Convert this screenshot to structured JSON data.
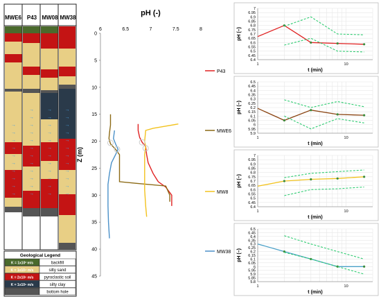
{
  "columns": {
    "headers": [
      "MWE6",
      "P43",
      "MW08",
      "MW38"
    ],
    "kvalue_arrow": "→"
  },
  "legend": {
    "title": "Geological Legend",
    "rows": [
      {
        "k": "K = 1x10² m/s",
        "name": "backfill",
        "color": "#4a6a2c"
      },
      {
        "k": "K = 1x10⁴ m/s",
        "name": "silty sand",
        "color": "#e8cf85"
      },
      {
        "k": "K = 2x10⁵ m/s",
        "name": "pyroclastic soil",
        "color": "#c41414"
      },
      {
        "k": "K = 1x10⁶ m/s",
        "name": "silty clay",
        "color": "#2a3a4a"
      },
      {
        "k": "",
        "name": "bottom hole",
        "color": "#555555"
      }
    ]
  },
  "chart_data": [
    {
      "type": "line",
      "title": "pH (-)",
      "ylabel": "Z (m)",
      "xlim": [
        6,
        8
      ],
      "ylim": [
        0,
        45
      ],
      "y_reversed": true,
      "xticks": [
        "6",
        "6.5",
        "7",
        "7.5",
        "8"
      ],
      "yticks": [
        "0",
        "5",
        "10",
        "15",
        "20",
        "25",
        "30",
        "35",
        "40",
        "45"
      ],
      "series": [
        {
          "name": "P43",
          "color": "#e02020",
          "points": [
            [
              6.75,
              16.8
            ],
            [
              6.75,
              18
            ],
            [
              6.78,
              19.3
            ],
            [
              6.83,
              20.2
            ],
            [
              6.9,
              21
            ],
            [
              6.92,
              22.5
            ],
            [
              6.95,
              24
            ],
            [
              7.05,
              26
            ],
            [
              7.15,
              27.5
            ],
            [
              7.3,
              28.5
            ],
            [
              7.42,
              30
            ],
            [
              7.42,
              32
            ]
          ]
        },
        {
          "name": "MWE6",
          "color": "#8b6914",
          "points": [
            [
              6.2,
              15
            ],
            [
              6.2,
              17
            ],
            [
              6.18,
              18.5
            ],
            [
              6.17,
              19.5
            ],
            [
              6.2,
              20.5
            ],
            [
              6.3,
              21.5
            ],
            [
              6.38,
              22.5
            ],
            [
              6.38,
              25
            ],
            [
              6.38,
              27.5
            ],
            [
              6.7,
              27.8
            ],
            [
              7.3,
              28.3
            ],
            [
              7.38,
              30
            ],
            [
              7.38,
              31.2
            ]
          ]
        },
        {
          "name": "MW8",
          "color": "#f2c21d",
          "points": [
            [
              7.55,
              16.8
            ],
            [
              7.3,
              17.2
            ],
            [
              7.05,
              17.6
            ],
            [
              6.9,
              18
            ],
            [
              6.88,
              20
            ],
            [
              6.9,
              21
            ],
            [
              6.88,
              22.5
            ],
            [
              6.88,
              25
            ],
            [
              6.88,
              29
            ],
            [
              6.9,
              32
            ],
            [
              6.92,
              34
            ]
          ]
        },
        {
          "name": "MW38",
          "color": "#4a90c8",
          "points": [
            [
              6.28,
              18
            ],
            [
              6.26,
              19.5
            ],
            [
              6.3,
              20.5
            ],
            [
              6.35,
              21.5
            ],
            [
              6.3,
              22.5
            ],
            [
              6.22,
              24
            ],
            [
              6.18,
              26
            ],
            [
              6.15,
              28
            ],
            [
              6.15,
              32
            ],
            [
              6.16,
              35
            ],
            [
              6.18,
              38
            ]
          ]
        }
      ]
    },
    {
      "type": "line",
      "title": "",
      "xlabel": "t (min)",
      "ylabel": "pH (–)",
      "x_scale": "log",
      "xlim": [
        1,
        20
      ],
      "ylim": [
        6.4,
        7
      ],
      "xticks": [
        "1",
        "10"
      ],
      "yticks": [
        "6.4",
        "6.45",
        "6.5",
        "6.55",
        "6.6",
        "6.65",
        "6.7",
        "6.75",
        "6.8",
        "6.85",
        "6.9",
        "6.95",
        "7"
      ],
      "series": [
        {
          "color": "#e02020",
          "points": [
            [
              1,
              6.67
            ],
            [
              2,
              6.8
            ],
            [
              4,
              6.6
            ],
            [
              8,
              6.59
            ],
            [
              16,
              6.58
            ]
          ]
        },
        {
          "color": "#2ecc71",
          "dashed": true,
          "points": [
            [
              2,
              6.79
            ],
            [
              4,
              6.9
            ],
            [
              8,
              6.7
            ],
            [
              16,
              6.69
            ]
          ]
        },
        {
          "color": "#2ecc71",
          "dashed": true,
          "points": [
            [
              2,
              6.57
            ],
            [
              4,
              6.65
            ],
            [
              8,
              6.5
            ],
            [
              16,
              6.49
            ]
          ]
        }
      ]
    },
    {
      "type": "line",
      "title": "",
      "xlabel": "t (min)",
      "ylabel": "pH (–)",
      "x_scale": "log",
      "xlim": [
        1,
        20
      ],
      "ylim": [
        5.9,
        6.5
      ],
      "xticks": [
        "1",
        "10"
      ],
      "yticks": [
        "5.9",
        "5.95",
        "6",
        "6.05",
        "6.1",
        "6.15",
        "6.2",
        "6.25",
        "6.3",
        "6.35",
        "6.4",
        "6.45",
        "6.5"
      ],
      "series": [
        {
          "color": "#8b4513",
          "points": [
            [
              1,
              6.19
            ],
            [
              2,
              6.05
            ],
            [
              4,
              6.17
            ],
            [
              8,
              6.12
            ],
            [
              16,
              6.11
            ]
          ]
        },
        {
          "color": "#2ecc71",
          "dashed": true,
          "points": [
            [
              2,
              6.29
            ],
            [
              4,
              6.2
            ],
            [
              8,
              6.27
            ],
            [
              16,
              6.21
            ]
          ]
        },
        {
          "color": "#2ecc71",
          "dashed": true,
          "points": [
            [
              2,
              6.1
            ],
            [
              4,
              5.95
            ],
            [
              8,
              6.07
            ],
            [
              16,
              6.02
            ]
          ]
        }
      ]
    },
    {
      "type": "line",
      "title": "",
      "xlabel": "t (min)",
      "ylabel": "pH (–)",
      "x_scale": "log",
      "xlim": [
        1,
        20
      ],
      "ylim": [
        6.4,
        7
      ],
      "xticks": [
        "1",
        "10"
      ],
      "yticks": [
        "6.4",
        "6.45",
        "6.5",
        "6.55",
        "6.6",
        "6.65",
        "6.7",
        "6.75",
        "6.8",
        "6.85",
        "6.9",
        "6.95",
        "7"
      ],
      "series": [
        {
          "color": "#f2c21d",
          "points": [
            [
              1,
              6.64
            ],
            [
              2,
              6.7
            ],
            [
              4,
              6.72
            ],
            [
              8,
              6.73
            ],
            [
              16,
              6.75
            ]
          ]
        },
        {
          "color": "#2ecc71",
          "dashed": true,
          "points": [
            [
              2,
              6.74
            ],
            [
              4,
              6.79
            ],
            [
              8,
              6.81
            ],
            [
              16,
              6.83
            ]
          ]
        },
        {
          "color": "#2ecc71",
          "dashed": true,
          "points": [
            [
              2,
              6.53
            ],
            [
              4,
              6.6
            ],
            [
              8,
              6.61
            ],
            [
              16,
              6.63
            ]
          ]
        }
      ]
    },
    {
      "type": "line",
      "title": "",
      "xlabel": "t (min)",
      "ylabel": "pH (–)",
      "x_scale": "log",
      "xlim": [
        1,
        20
      ],
      "ylim": [
        5.8,
        6.5
      ],
      "xticks": [
        "1",
        "10"
      ],
      "yticks": [
        "5.8",
        "5.85",
        "5.9",
        "5.95",
        "6",
        "6.05",
        "6.1",
        "6.15",
        "6.2",
        "6.25",
        "6.3",
        "6.35",
        "6.4",
        "6.45",
        "6.5"
      ],
      "series": [
        {
          "color": "#4aa0c8",
          "points": [
            [
              1,
              6.3
            ],
            [
              2,
              6.2
            ],
            [
              4,
              6.1
            ],
            [
              8,
              6
            ],
            [
              16,
              6
            ]
          ]
        },
        {
          "color": "#2ecc71",
          "dashed": true,
          "points": [
            [
              2,
              6.41
            ],
            [
              4,
              6.3
            ],
            [
              8,
              6.2
            ],
            [
              16,
              6.1
            ]
          ]
        },
        {
          "color": "#2ecc71",
          "dashed": true,
          "points": [
            [
              2,
              6.19
            ],
            [
              4,
              6.1
            ],
            [
              8,
              6
            ],
            [
              16,
              5.9
            ]
          ]
        }
      ]
    }
  ]
}
